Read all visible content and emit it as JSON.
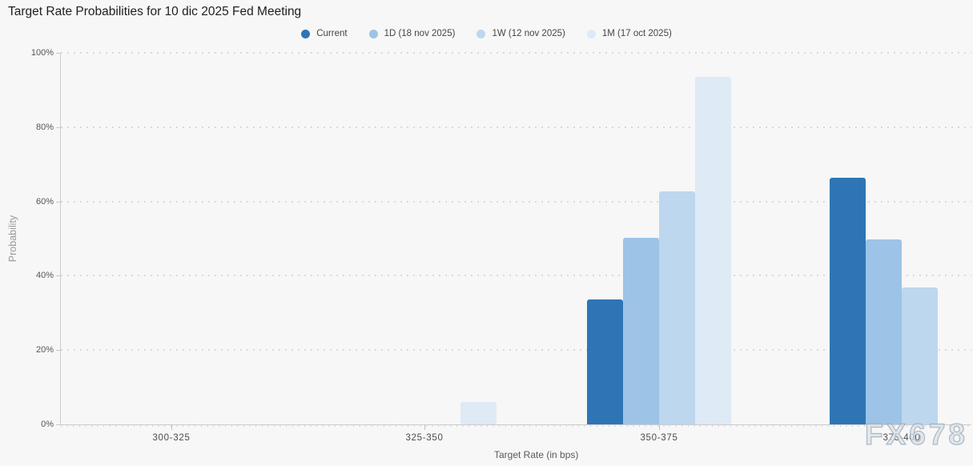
{
  "title": "Target Rate Probabilities for 10 dic 2025 Fed Meeting",
  "watermark": "FX678",
  "colors": {
    "background": "#f7f7f7",
    "axis_line": "#cccccc",
    "gridline": "#d9d9d9",
    "series_current": "#2e75b6",
    "series_1d": "#9dc3e6",
    "series_1w": "#bdd7ee",
    "series_1m": "#deeaf6"
  },
  "chart_data": {
    "type": "bar",
    "title": "Target Rate Probabilities for 10 dic 2025 Fed Meeting",
    "xlabel": "Target Rate (in bps)",
    "ylabel": "Probability",
    "categories": [
      "300-325",
      "325-350",
      "350-375",
      "375-400"
    ],
    "series": [
      {
        "name": "Current",
        "color": "#2e75b6",
        "values": [
          0,
          0,
          33.6,
          66.4
        ]
      },
      {
        "name": "1D (18 nov 2025)",
        "color": "#9dc3e6",
        "values": [
          0,
          0,
          50.2,
          49.8
        ]
      },
      {
        "name": "1W (12 nov 2025)",
        "color": "#bdd7ee",
        "values": [
          0,
          0,
          62.7,
          36.9
        ]
      },
      {
        "name": "1M (17 oct 2025)",
        "color": "#deeaf6",
        "values": [
          0,
          6.1,
          93.5,
          0
        ]
      }
    ],
    "ylim": [
      0,
      100
    ],
    "yticks": [
      "0%",
      "20%",
      "40%",
      "60%",
      "80%",
      "100%"
    ],
    "grid": "horizontal dotted",
    "legend_position": "top center"
  }
}
